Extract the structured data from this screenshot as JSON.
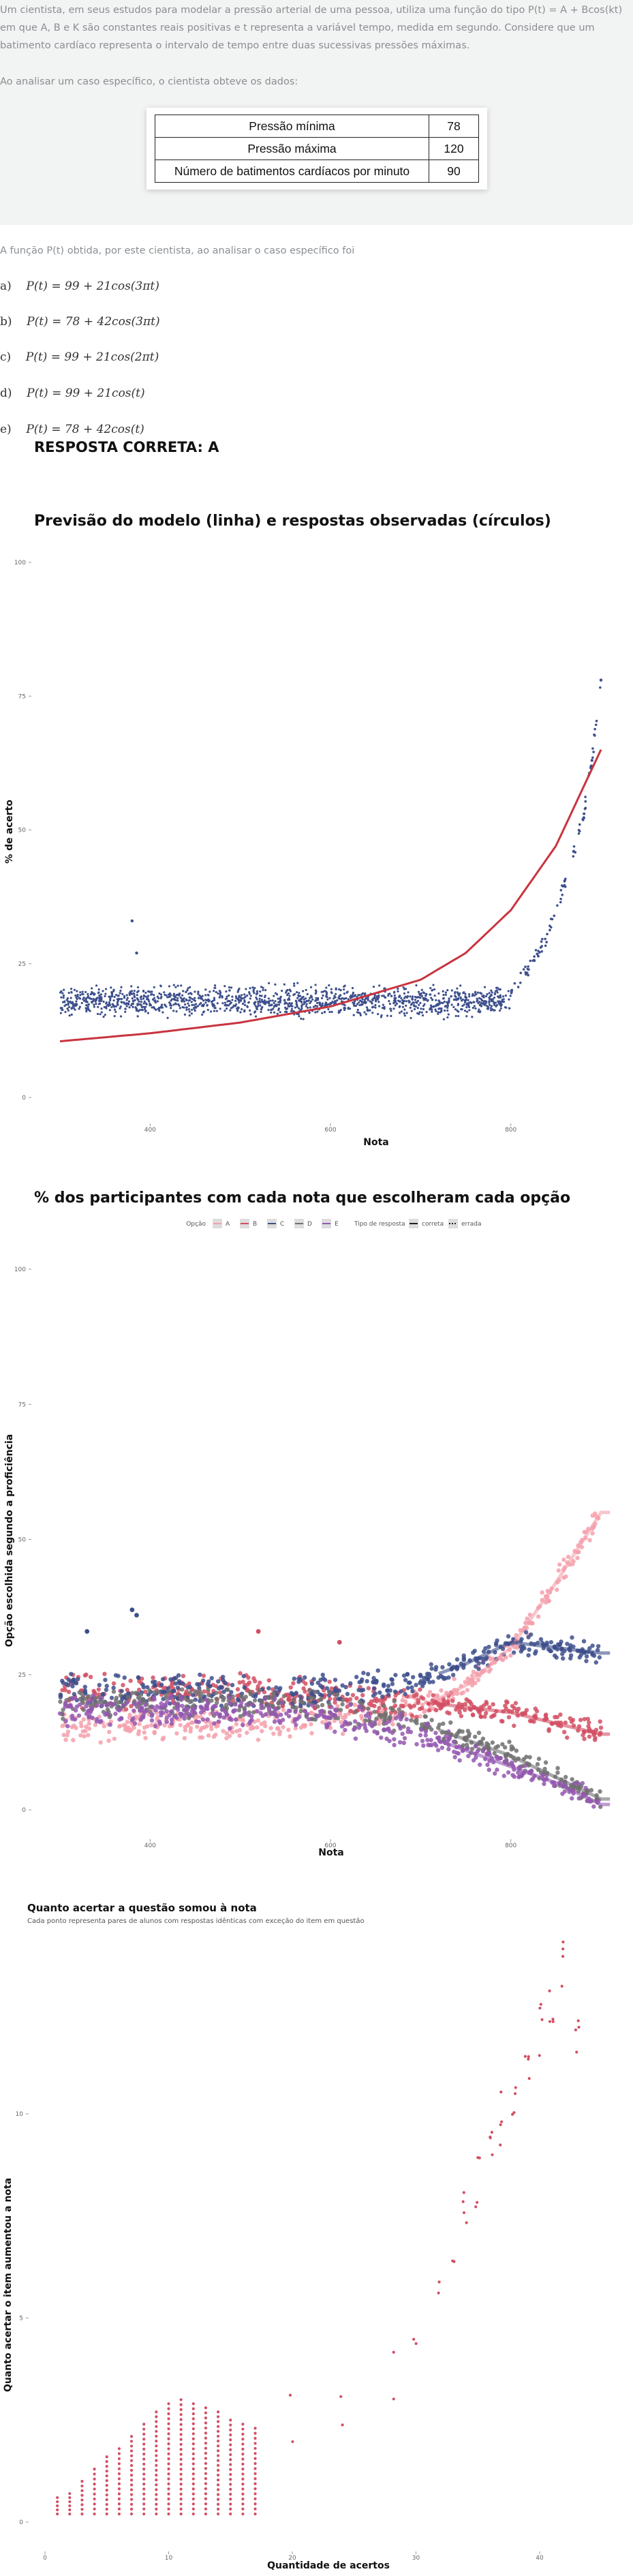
{
  "question": {
    "stem": "Um cientista, em seus estudos para modelar a pressão arterial de uma pessoa, utiliza uma função do tipo P(t) = A + Bcos(kt) em que A, B e K são constantes reais positivas e t representa a variável tempo, medida em segundo. Considere que um batimento cardíaco representa o intervalo de tempo entre duas sucessivas pressões máximas.",
    "analysis_intro": "Ao analisar um caso específico, o cientista obteve os dados:",
    "table": [
      {
        "label": "Pressão mínima",
        "value": "78"
      },
      {
        "label": "Pressão máxima",
        "value": "120"
      },
      {
        "label": "Número de batimentos cardíacos por minuto",
        "value": "90"
      }
    ],
    "prompt": "A função P(t) obtida, por este cientista, ao analisar o caso específico foi",
    "options": [
      {
        "letter": "a)",
        "formula": "P(t) = 99 + 21cos(3πt)"
      },
      {
        "letter": "b)",
        "formula": "P(t) = 78 + 42cos(3πt)"
      },
      {
        "letter": "c)",
        "formula": "P(t) = 99 + 21cos(2πt)"
      },
      {
        "letter": "d)",
        "formula": "P(t) = 99 + 21cos(t)"
      },
      {
        "letter": "e)",
        "formula": "P(t) = 78 + 42cos(t)"
      }
    ],
    "answer": "RESPOSTA CORRETA: A"
  },
  "chart_data": [
    {
      "type": "scatter",
      "title": "Previsão do modelo (linha) e respostas observadas (círculos)",
      "xlabel": "Nota",
      "ylabel": "% de acerto",
      "xlim": [
        300,
        910
      ],
      "ylim": [
        0,
        100
      ],
      "x_ticks": [
        "400",
        "600",
        "800"
      ],
      "y_ticks": [
        "0",
        "25",
        "50",
        "75",
        "100"
      ],
      "colors": {
        "points": "#3d4f8c",
        "line": "#c8343f"
      },
      "model_line": {
        "x": [
          300,
          400,
          500,
          600,
          700,
          750,
          800,
          850,
          900
        ],
        "y": [
          10.5,
          12,
          14,
          17,
          22,
          27,
          35,
          47,
          65
        ]
      },
      "observed": {
        "bulk": {
          "x_range": [
            300,
            800
          ],
          "y_mean": 18,
          "y_spread": 2
        },
        "upper_tail": {
          "x": [
            800,
            810,
            820,
            830,
            840,
            850,
            860,
            870,
            880,
            890,
            900
          ],
          "y": [
            20,
            22,
            24,
            27,
            30,
            35,
            40,
            46,
            52,
            63,
            78
          ]
        },
        "outliers": {
          "x": [
            380,
            385
          ],
          "y": [
            33,
            27
          ]
        }
      }
    },
    {
      "type": "scatter",
      "title": "% dos participantes com cada nota que escolheram cada opção",
      "xlabel": "Nota",
      "ylabel": "Opção escolhida segundo a proficiência",
      "xlim": [
        300,
        910
      ],
      "ylim": [
        0,
        100
      ],
      "x_ticks": [
        "400",
        "600",
        "800"
      ],
      "y_ticks": [
        "0",
        "25",
        "50",
        "75",
        "100"
      ],
      "legend": {
        "option_title": "Opção",
        "options": [
          "A",
          "B",
          "C",
          "D",
          "E"
        ],
        "type_title": "Tipo de resposta",
        "types": [
          "correta",
          "errada"
        ],
        "placement": "top"
      },
      "series": [
        {
          "name": "A",
          "color": "#f4a0ac",
          "x": [
            300,
            400,
            500,
            600,
            700,
            750,
            800,
            850,
            900
          ],
          "y": [
            15,
            16,
            16,
            17,
            19,
            23,
            30,
            42,
            55
          ]
        },
        {
          "name": "B",
          "color": "#d24f63",
          "x": [
            300,
            400,
            500,
            600,
            700,
            750,
            800,
            850,
            900
          ],
          "y": [
            22,
            22,
            22,
            21,
            20,
            19,
            18,
            16,
            14
          ]
        },
        {
          "name": "C",
          "color": "#3d4f8c",
          "x": [
            300,
            400,
            500,
            600,
            700,
            750,
            800,
            850,
            900
          ],
          "y": [
            22,
            22,
            22,
            22,
            24,
            27,
            31,
            30,
            29
          ]
        },
        {
          "name": "D",
          "color": "#707070",
          "x": [
            300,
            400,
            500,
            600,
            700,
            750,
            800,
            850,
            900
          ],
          "y": [
            20,
            20,
            20,
            19,
            16,
            13,
            10,
            6,
            2
          ]
        },
        {
          "name": "E",
          "color": "#9457b0",
          "x": [
            300,
            400,
            500,
            600,
            700,
            750,
            800,
            850,
            900
          ],
          "y": [
            18,
            18,
            18,
            17,
            14,
            11,
            8,
            5,
            1
          ]
        }
      ]
    },
    {
      "type": "scatter",
      "title": "Quanto acertar a questão somou à nota",
      "subtitle": "Cada ponto representa pares de alunos com respostas idênticas com exceção do item em questão",
      "xlabel": "Quantidade de acertos",
      "ylabel": "Quanto acertar o item aumentou a nota",
      "xlim": [
        -1,
        46
      ],
      "ylim": [
        -0.5,
        14.5
      ],
      "x_ticks": [
        "0",
        "10",
        "20",
        "30",
        "40"
      ],
      "y_ticks": [
        "0",
        "5",
        "10"
      ],
      "colors": {
        "points": "#d24f63"
      },
      "columns": [
        {
          "x": 1,
          "ymax": 0.6
        },
        {
          "x": 2,
          "ymax": 0.7
        },
        {
          "x": 3,
          "ymax": 1.0
        },
        {
          "x": 4,
          "ymax": 1.3
        },
        {
          "x": 5,
          "ymax": 1.6
        },
        {
          "x": 6,
          "ymax": 1.8
        },
        {
          "x": 7,
          "ymax": 2.1
        },
        {
          "x": 8,
          "ymax": 2.4
        },
        {
          "x": 9,
          "ymax": 2.7
        },
        {
          "x": 10,
          "ymax": 2.9
        },
        {
          "x": 11,
          "ymax": 3.0
        },
        {
          "x": 12,
          "ymax": 2.9
        },
        {
          "x": 13,
          "ymax": 2.8
        },
        {
          "x": 14,
          "ymax": 2.7
        },
        {
          "x": 15,
          "ymax": 2.5
        },
        {
          "x": 16,
          "ymax": 2.4
        },
        {
          "x": 17,
          "ymax": 2.3
        }
      ],
      "scattered": {
        "x": [
          20,
          24,
          28,
          30,
          32,
          33,
          34,
          35,
          36,
          37,
          38,
          39,
          40,
          41,
          42,
          43
        ],
        "y": [
          2.5,
          3.0,
          3.7,
          4.9,
          6.0,
          6.9,
          7.5,
          8.4,
          9.0,
          9.9,
          10.5,
          11.4,
          12.0,
          12.9,
          13.6,
          11.6
        ]
      }
    }
  ]
}
